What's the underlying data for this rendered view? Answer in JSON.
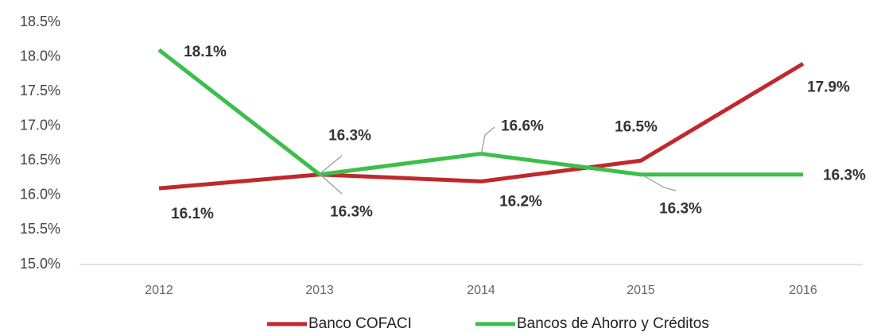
{
  "chart_data": {
    "type": "line",
    "categories": [
      "2012",
      "2013",
      "2014",
      "2015",
      "2016"
    ],
    "series": [
      {
        "name": "Banco COFACI",
        "color": "#c0282d",
        "values": [
          16.1,
          16.3,
          16.2,
          16.5,
          17.9
        ],
        "value_labels": [
          "16.1%",
          "16.3%",
          "16.2%",
          "16.5%",
          "17.9%"
        ]
      },
      {
        "name": "Bancos de Ahorro y Créditos",
        "color": "#3cbf4a",
        "values": [
          18.1,
          16.3,
          16.6,
          16.3,
          16.3
        ],
        "value_labels": [
          "18.1%",
          "16.3%",
          "16.6%",
          "16.3%",
          "16.3%"
        ]
      }
    ],
    "ylim": [
      15.0,
      18.5
    ],
    "yticks": [
      {
        "value": 15.0,
        "label": "15.0%"
      },
      {
        "value": 15.5,
        "label": "15.5%"
      },
      {
        "value": 16.0,
        "label": "16.0%"
      },
      {
        "value": 16.5,
        "label": "16.5%"
      },
      {
        "value": 17.0,
        "label": "17.0%"
      },
      {
        "value": 17.5,
        "label": "17.5%"
      },
      {
        "value": 18.0,
        "label": "18.0%"
      },
      {
        "value": 18.5,
        "label": "18.5%"
      }
    ],
    "grid": false,
    "legend": "bottom"
  }
}
